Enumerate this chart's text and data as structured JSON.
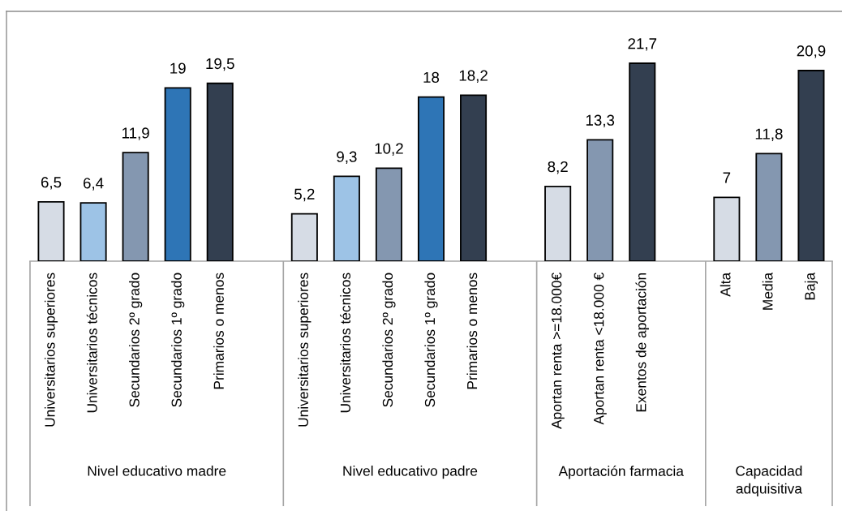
{
  "chart_data": {
    "type": "bar",
    "categories": [
      "Universitarios superiores",
      "Universitarios técnicos",
      "Secundarios 2º grado",
      "Secundarios 1º grado",
      "Primarios o menos",
      null,
      "Universitarios superiores",
      "Universitarios técnicos",
      "Secundarios 2º grado",
      "Secundarios 1º grado",
      "Primarios o menos",
      null,
      "Aportan renta >=18.000€",
      "Aportan renta <18.000 €",
      "Exentos de aportación",
      null,
      "Alta",
      "Media",
      "Baja"
    ],
    "values": [
      6.5,
      6.4,
      11.9,
      19,
      19.5,
      null,
      5.2,
      9.3,
      10.2,
      18,
      18.2,
      null,
      8.2,
      13.3,
      21.7,
      null,
      7,
      11.8,
      20.9
    ],
    "colors": [
      "#d6dce5",
      "#9dc3e6",
      "#8497b0",
      "#2e75b6",
      "#333f50",
      null,
      "#d6dce5",
      "#9dc3e6",
      "#8497b0",
      "#2e75b6",
      "#333f50",
      null,
      "#d6dce5",
      "#8497b0",
      "#333f50",
      null,
      "#d6dce5",
      "#8497b0",
      "#333f50"
    ],
    "value_labels": [
      "6,5",
      "6,4",
      "11,9",
      "19",
      "19,5",
      null,
      "5,2",
      "9,3",
      "10,2",
      "18",
      "18,2",
      null,
      "8,2",
      "13,3",
      "21,7",
      null,
      "7",
      "11,8",
      "20,9"
    ],
    "annotations": [
      "Nivel educativo madre",
      "Nivel educativo padre",
      "Aportación farmacia",
      "Capacidad adquisitiva"
    ],
    "tick_labels": "x"
  }
}
